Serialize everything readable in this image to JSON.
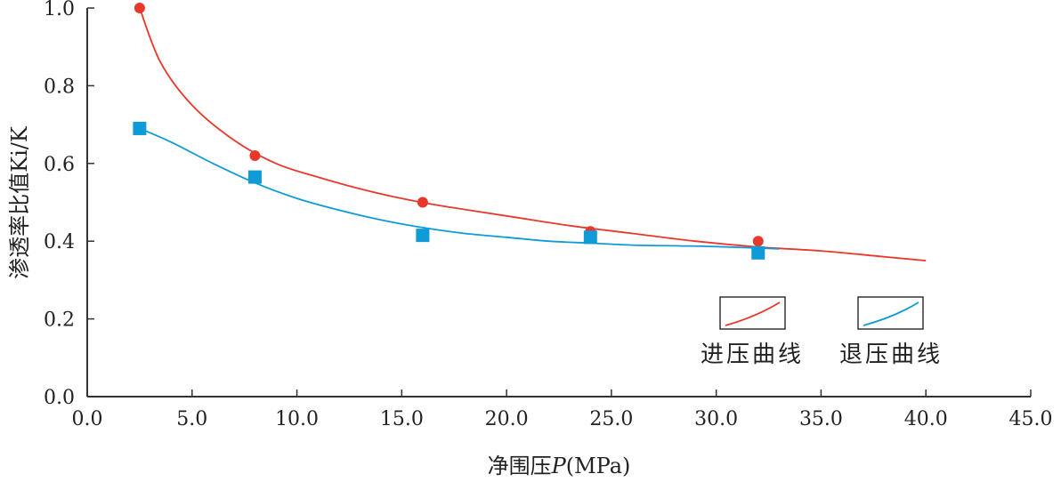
{
  "chart_data": {
    "type": "scatter",
    "xlabel_main": "净围压",
    "xlabel_var": "P",
    "xlabel_unit": "(MPa)",
    "ylabel": "渗透率比值Ki/K",
    "xlim": [
      0,
      45
    ],
    "ylim": [
      0,
      1.0
    ],
    "x_ticks": [
      "0.0",
      "5.0",
      "10.0",
      "15.0",
      "20.0",
      "25.0",
      "30.0",
      "35.0",
      "40.0",
      "45.0"
    ],
    "y_ticks": [
      "0.0",
      "0.2",
      "0.4",
      "0.6",
      "0.8",
      "1.0"
    ],
    "grid": false,
    "legend_position": "bottom-right",
    "series": [
      {
        "name": "进压曲线",
        "color": "#e8382c",
        "marker": "circle",
        "points": [
          [
            2.5,
            1.0
          ],
          [
            8.0,
            0.62
          ],
          [
            16.0,
            0.5
          ],
          [
            24.0,
            0.425
          ],
          [
            32.0,
            0.4
          ]
        ],
        "fit_curve": [
          [
            2.5,
            1.0
          ],
          [
            3.5,
            0.86
          ],
          [
            5.0,
            0.75
          ],
          [
            7.0,
            0.66
          ],
          [
            9.0,
            0.6
          ],
          [
            11.0,
            0.565
          ],
          [
            13.0,
            0.535
          ],
          [
            15.0,
            0.51
          ],
          [
            17.0,
            0.49
          ],
          [
            20.0,
            0.465
          ],
          [
            23.0,
            0.44
          ],
          [
            26.0,
            0.42
          ],
          [
            29.0,
            0.4
          ],
          [
            32.0,
            0.385
          ],
          [
            35.0,
            0.375
          ],
          [
            38.0,
            0.36
          ],
          [
            40.0,
            0.35
          ]
        ]
      },
      {
        "name": "退压曲线",
        "color": "#0f9bd7",
        "marker": "square",
        "points": [
          [
            2.5,
            0.69
          ],
          [
            8.0,
            0.565
          ],
          [
            16.0,
            0.415
          ],
          [
            24.0,
            0.41
          ],
          [
            32.0,
            0.37
          ]
        ],
        "fit_curve": [
          [
            2.5,
            0.69
          ],
          [
            4.0,
            0.655
          ],
          [
            6.0,
            0.6
          ],
          [
            8.0,
            0.55
          ],
          [
            10.0,
            0.51
          ],
          [
            12.0,
            0.48
          ],
          [
            14.0,
            0.455
          ],
          [
            16.0,
            0.435
          ],
          [
            18.0,
            0.42
          ],
          [
            20.0,
            0.41
          ],
          [
            22.0,
            0.4
          ],
          [
            24.0,
            0.395
          ],
          [
            26.0,
            0.39
          ],
          [
            28.0,
            0.388
          ],
          [
            30.0,
            0.386
          ],
          [
            33.0,
            0.38
          ]
        ]
      }
    ]
  }
}
